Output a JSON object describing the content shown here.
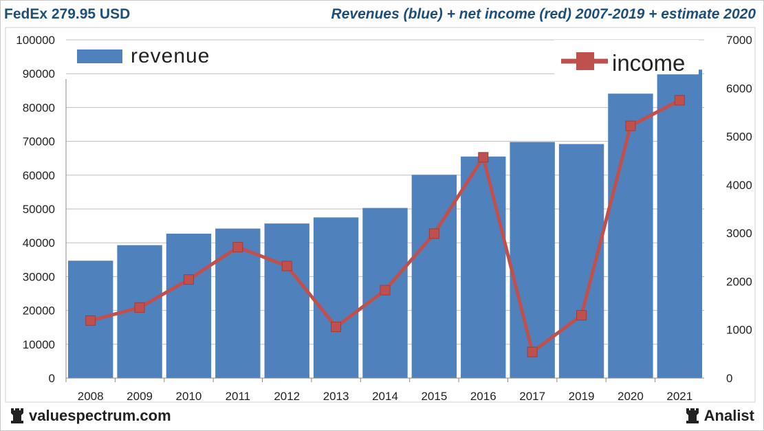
{
  "header": {
    "ticker_price": "FedEx 279.95 USD",
    "subtitle": "Revenues (blue) + net income (red) 2007-2019 + estimate 2020"
  },
  "footer": {
    "left_brand": "valuespectrum.com",
    "right_brand": "Analist",
    "brand_icon": "rook-chess-piece-icon"
  },
  "colors": {
    "bar": "#4f81bd",
    "line": "#c0504d",
    "grid": "#bfbfbf",
    "title_text": "#1f4e79"
  },
  "chart_data": {
    "type": "bar+line",
    "categories": [
      "2008",
      "2009",
      "2010",
      "2011",
      "2012",
      "2013",
      "2014",
      "2015",
      "2016",
      "2017",
      "2019",
      "2020",
      "2021"
    ],
    "series": [
      {
        "name": "revenue",
        "type": "bar",
        "axis": "left",
        "values": [
          34700,
          39300,
          42700,
          44200,
          45700,
          47500,
          50300,
          60100,
          65500,
          69800,
          69200,
          84100,
          89800
        ]
      },
      {
        "name": "income",
        "type": "line",
        "axis": "right",
        "values": [
          1190,
          1460,
          2040,
          2710,
          2320,
          1060,
          1820,
          2990,
          4570,
          540,
          1300,
          5220,
          5750
        ]
      }
    ],
    "last_bar_overflow_value": 91200,
    "left_axis": {
      "min": 0,
      "max": 100000,
      "ticks": [
        "0",
        "10000",
        "20000",
        "30000",
        "40000",
        "50000",
        "60000",
        "70000",
        "80000",
        "90000",
        "100000"
      ]
    },
    "right_axis": {
      "min": 0,
      "max": 7000,
      "ticks": [
        "0",
        "1000",
        "2000",
        "3000",
        "4000",
        "5000",
        "6000",
        "7000"
      ]
    },
    "grid": true,
    "legend": [
      {
        "label": "revenue",
        "placement": "top-left"
      },
      {
        "label": "income",
        "placement": "top-right"
      }
    ]
  }
}
